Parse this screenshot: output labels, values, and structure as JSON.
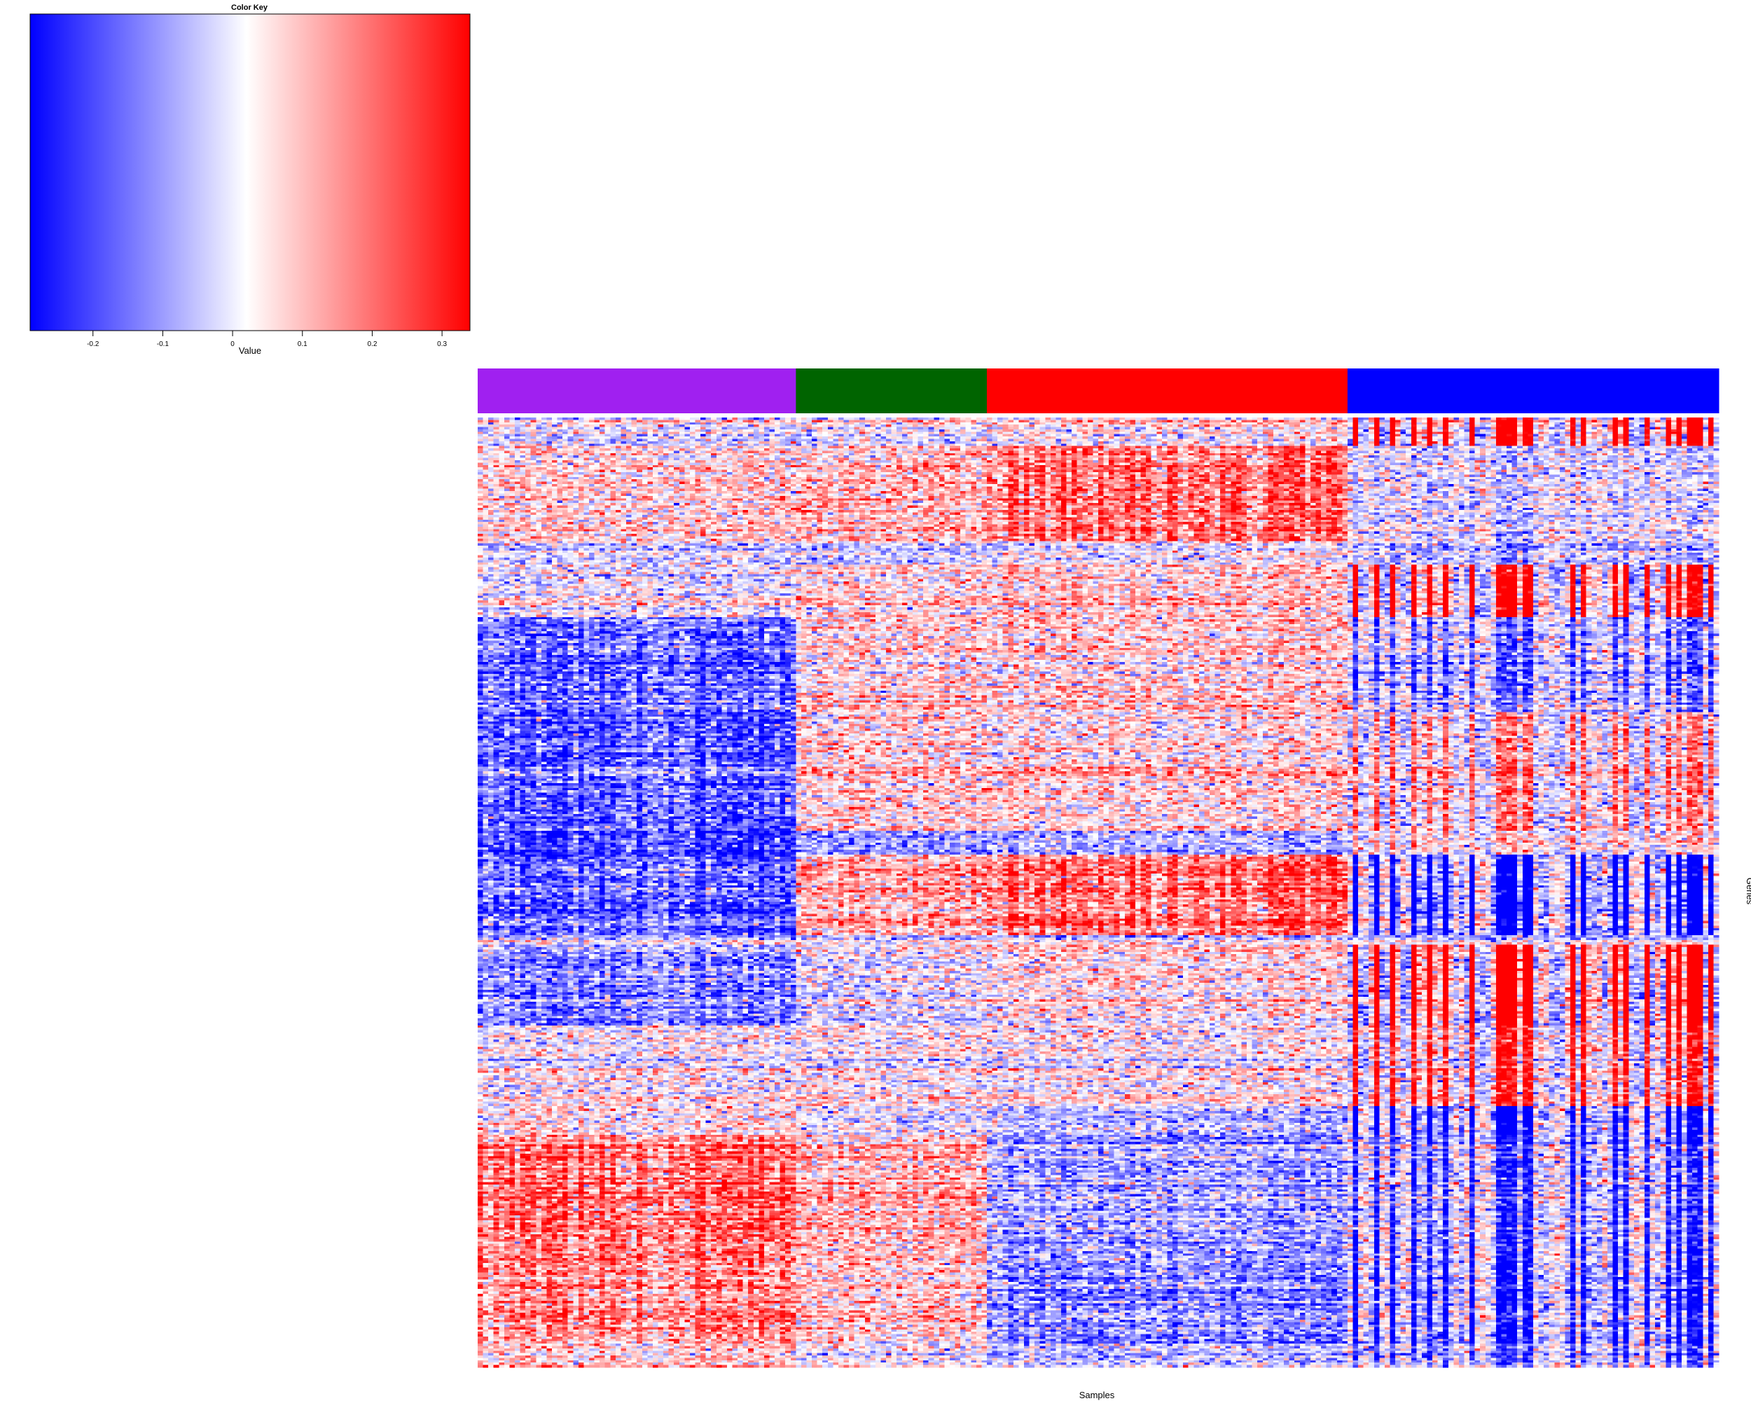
{
  "chart_data": {
    "type": "heatmap",
    "title": "",
    "xlabel": "Samples",
    "ylabel": "Genes",
    "color_key": {
      "title": "Color Key",
      "label": "Value",
      "range": [
        -0.29,
        0.34
      ],
      "ticks": [
        -0.2,
        -0.1,
        0,
        0.1,
        0.2,
        0.3
      ],
      "tick_labels": [
        "-0.2",
        "-0.1",
        "0",
        "0.1",
        "0.2",
        "0.3"
      ],
      "colors": {
        "low": "#0000ff",
        "mid": "#ffffff",
        "high": "#ff0000"
      },
      "midpoint": 0.025
    },
    "sample_groups": [
      {
        "name": "purple",
        "color": "#a020f0",
        "n_samples": 60
      },
      {
        "name": "green",
        "color": "#006400",
        "n_samples": 36
      },
      {
        "name": "red",
        "color": "#ff0000",
        "n_samples": 68
      },
      {
        "name": "blue",
        "color": "#0000ff",
        "n_samples": 70
      }
    ],
    "n_genes": 400,
    "gene_blocks": [
      {
        "genes": 12,
        "means": [
          0.0,
          0.02,
          0.05,
          0.22
        ]
      },
      {
        "genes": 40,
        "means": [
          0.06,
          0.1,
          0.18,
          -0.03
        ]
      },
      {
        "genes": 10,
        "means": [
          0.0,
          0.0,
          0.03,
          -0.04
        ]
      },
      {
        "genes": 22,
        "means": [
          0.02,
          0.07,
          0.09,
          0.2
        ]
      },
      {
        "genes": 40,
        "means": [
          -0.14,
          0.08,
          0.08,
          -0.09
        ]
      },
      {
        "genes": 50,
        "means": [
          -0.16,
          0.08,
          0.07,
          0.1
        ]
      },
      {
        "genes": 10,
        "means": [
          -0.22,
          -0.12,
          -0.08,
          0.05
        ]
      },
      {
        "genes": 34,
        "means": [
          -0.15,
          0.14,
          0.2,
          -0.2
        ]
      },
      {
        "genes": 4,
        "means": [
          0.0,
          0.0,
          0.0,
          0.0
        ]
      },
      {
        "genes": 34,
        "means": [
          -0.12,
          0.0,
          0.05,
          0.26
        ]
      },
      {
        "genes": 34,
        "means": [
          0.02,
          0.03,
          0.03,
          0.15
        ]
      },
      {
        "genes": 12,
        "means": [
          0.05,
          0.0,
          -0.05,
          -0.18
        ]
      },
      {
        "genes": 40,
        "means": [
          0.19,
          0.12,
          -0.08,
          -0.12
        ]
      },
      {
        "genes": 48,
        "means": [
          0.17,
          0.1,
          -0.1,
          -0.14
        ]
      },
      {
        "genes": 10,
        "means": [
          0.08,
          0.02,
          -0.05,
          -0.1
        ]
      }
    ]
  }
}
